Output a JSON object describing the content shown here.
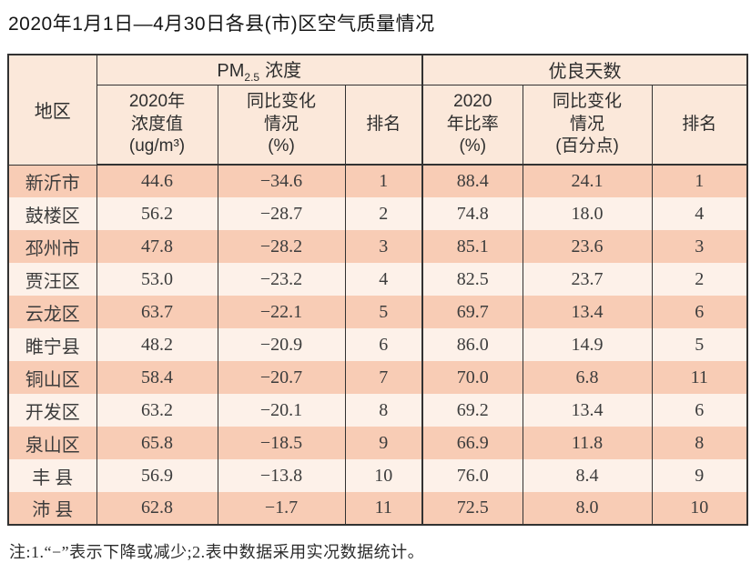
{
  "page": {
    "title": "2020年1月1日—4月30日各县(市)区空气质量情况",
    "note": "注:1.“−”表示下降或减少;2.表中数据采用实况数据统计。"
  },
  "table": {
    "corner_label": "地区",
    "pm_group": {
      "prefix": "PM",
      "sub": "2.5",
      "suffix": "浓度"
    },
    "good_group_label": "优良天数",
    "sub_headers": [
      "2020年\n浓度值\n(ug/m³)",
      "同比变化\n情况\n(%)",
      "排名",
      "2020\n年比率\n(%)",
      "同比变化\n情况\n(百分点)",
      "排名"
    ],
    "rows": [
      {
        "region": "新沂市",
        "pm_value": "44.6",
        "pm_change": "−34.6",
        "pm_rank": "1",
        "good_rate": "88.4",
        "good_change": "24.1",
        "good_rank": "1"
      },
      {
        "region": "鼓楼区",
        "pm_value": "56.2",
        "pm_change": "−28.7",
        "pm_rank": "2",
        "good_rate": "74.8",
        "good_change": "18.0",
        "good_rank": "4"
      },
      {
        "region": "邳州市",
        "pm_value": "47.8",
        "pm_change": "−28.2",
        "pm_rank": "3",
        "good_rate": "85.1",
        "good_change": "23.6",
        "good_rank": "3"
      },
      {
        "region": "贾汪区",
        "pm_value": "53.0",
        "pm_change": "−23.2",
        "pm_rank": "4",
        "good_rate": "82.5",
        "good_change": "23.7",
        "good_rank": "2"
      },
      {
        "region": "云龙区",
        "pm_value": "63.7",
        "pm_change": "−22.1",
        "pm_rank": "5",
        "good_rate": "69.7",
        "good_change": "13.4",
        "good_rank": "6"
      },
      {
        "region": "睢宁县",
        "pm_value": "48.2",
        "pm_change": "−20.9",
        "pm_rank": "6",
        "good_rate": "86.0",
        "good_change": "14.9",
        "good_rank": "5"
      },
      {
        "region": "铜山区",
        "pm_value": "58.4",
        "pm_change": "−20.7",
        "pm_rank": "7",
        "good_rate": "70.0",
        "good_change": "6.8",
        "good_rank": "11"
      },
      {
        "region": "开发区",
        "pm_value": "63.2",
        "pm_change": "−20.1",
        "pm_rank": "8",
        "good_rate": "69.2",
        "good_change": "13.4",
        "good_rank": "6"
      },
      {
        "region": "泉山区",
        "pm_value": "65.8",
        "pm_change": "−18.5",
        "pm_rank": "9",
        "good_rate": "66.9",
        "good_change": "11.8",
        "good_rank": "8"
      },
      {
        "region": "丰 县",
        "pm_value": "56.9",
        "pm_change": "−13.8",
        "pm_rank": "10",
        "good_rate": "76.0",
        "good_change": "8.4",
        "good_rank": "9"
      },
      {
        "region": "沛 县",
        "pm_value": "62.8",
        "pm_change": "−1.7",
        "pm_rank": "11",
        "good_rate": "72.5",
        "good_change": "8.0",
        "good_rank": "10"
      }
    ]
  },
  "colors": {
    "row_odd": "#f8ccb5",
    "row_even": "#fdf1e9",
    "header_bg": "#fbe8da",
    "border": "#323232",
    "text": "#3c3c3c",
    "title_text": "#151515"
  }
}
